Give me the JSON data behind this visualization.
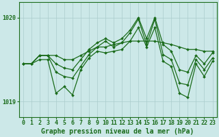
{
  "x": [
    0,
    1,
    2,
    3,
    4,
    5,
    6,
    7,
    8,
    9,
    10,
    11,
    12,
    13,
    14,
    15,
    16,
    17,
    18,
    19,
    20,
    21,
    22,
    23
  ],
  "line_top": [
    1019.45,
    1019.45,
    1019.55,
    1019.55,
    1019.55,
    1019.5,
    1019.5,
    1019.55,
    1019.6,
    1019.65,
    1019.65,
    1019.68,
    1019.7,
    1019.72,
    1019.72,
    1019.72,
    1019.72,
    1019.7,
    1019.68,
    1019.65,
    1019.62,
    1019.62,
    1019.6,
    1019.6
  ],
  "line_high": [
    1019.45,
    1019.45,
    1019.55,
    1019.55,
    1019.45,
    1019.4,
    1019.38,
    1019.5,
    1019.62,
    1019.7,
    1019.75,
    1019.7,
    1019.75,
    1019.85,
    1020.0,
    1019.75,
    1020.0,
    1019.68,
    1019.6,
    1019.38,
    1019.35,
    1019.55,
    1019.45,
    1019.58
  ],
  "line_mid": [
    1019.45,
    1019.45,
    1019.55,
    1019.55,
    1019.35,
    1019.3,
    1019.28,
    1019.42,
    1019.56,
    1019.65,
    1019.72,
    1019.65,
    1019.7,
    1019.82,
    1019.98,
    1019.68,
    1019.98,
    1019.56,
    1019.5,
    1019.22,
    1019.2,
    1019.5,
    1019.38,
    1019.52
  ],
  "line_low": [
    1019.45,
    1019.45,
    1019.5,
    1019.5,
    1019.1,
    1019.18,
    1019.08,
    1019.38,
    1019.52,
    1019.6,
    1019.58,
    1019.6,
    1019.62,
    1019.72,
    1019.88,
    1019.65,
    1019.88,
    1019.48,
    1019.42,
    1019.1,
    1019.05,
    1019.45,
    1019.3,
    1019.48
  ],
  "bg_color": "#cce8e8",
  "line_color": "#1a6b1a",
  "grid_color": "#aacccc",
  "label_color": "#1a6b1a",
  "xlabel": "Graphe pression niveau de la mer (hPa)",
  "ylim_min": 1018.82,
  "ylim_max": 1020.18,
  "yticks": [
    1019,
    1020
  ],
  "tick_fontsize": 6
}
